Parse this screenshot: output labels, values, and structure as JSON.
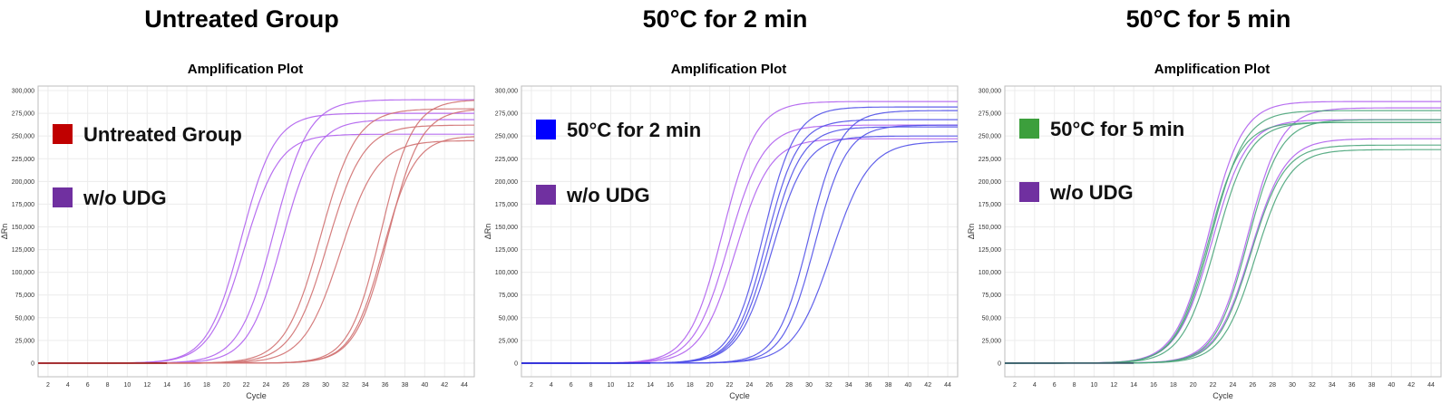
{
  "chart_data": [
    {
      "type": "line",
      "panel_title": "Untreated Group",
      "title": "Amplification Plot",
      "xlabel": "Cycle",
      "ylabel": "ΔRn",
      "xlim": [
        1,
        45
      ],
      "ylim": [
        -15000,
        305000
      ],
      "x_ticks": [
        2,
        4,
        6,
        8,
        10,
        12,
        14,
        16,
        18,
        20,
        22,
        24,
        26,
        28,
        30,
        32,
        34,
        36,
        38,
        40,
        42,
        44
      ],
      "y_ticks": [
        0,
        25000,
        50000,
        75000,
        100000,
        125000,
        150000,
        175000,
        200000,
        225000,
        250000,
        275000,
        300000
      ],
      "y_tick_labels": [
        "0",
        "25,000",
        "50,000",
        "75,000",
        "100,000",
        "125,000",
        "150,000",
        "175,000",
        "200,000",
        "225,000",
        "250,000",
        "275,000",
        "300,000"
      ],
      "grid": true,
      "legend": [
        {
          "label": "Untreated Group",
          "color": "#c00000"
        },
        {
          "label": "w/o UDG",
          "color": "#7030a0"
        }
      ],
      "series": [
        {
          "group": "w/o UDG",
          "color": "#b060ee",
          "midpoint": 21.5,
          "slope": 1.7,
          "plateau": 275000
        },
        {
          "group": "w/o UDG",
          "color": "#b060ee",
          "midpoint": 21.8,
          "slope": 1.75,
          "plateau": 252000
        },
        {
          "group": "w/o UDG",
          "color": "#b060ee",
          "midpoint": 24.8,
          "slope": 1.75,
          "plateau": 290000
        },
        {
          "group": "w/o UDG",
          "color": "#b060ee",
          "midpoint": 25.6,
          "slope": 1.7,
          "plateau": 268000
        },
        {
          "group": "Untreated Group",
          "color": "#d07070",
          "midpoint": 29.5,
          "slope": 1.8,
          "plateau": 280000
        },
        {
          "group": "Untreated Group",
          "color": "#d07070",
          "midpoint": 30.2,
          "slope": 1.8,
          "plateau": 262000
        },
        {
          "group": "Untreated Group",
          "color": "#d07070",
          "midpoint": 31.5,
          "slope": 1.85,
          "plateau": 245000
        },
        {
          "group": "Untreated Group",
          "color": "#d07070",
          "midpoint": 35.6,
          "slope": 1.6,
          "plateau": 290000
        },
        {
          "group": "Untreated Group",
          "color": "#d07070",
          "midpoint": 35.8,
          "slope": 1.6,
          "plateau": 250000
        },
        {
          "group": "Untreated Group",
          "color": "#d07070",
          "midpoint": 36.3,
          "slope": 1.65,
          "plateau": 280000
        }
      ]
    },
    {
      "type": "line",
      "panel_title": "50°C for 2 min",
      "title": "Amplification Plot",
      "xlabel": "Cycle",
      "ylabel": "ΔRn",
      "xlim": [
        1,
        45
      ],
      "ylim": [
        -15000,
        305000
      ],
      "x_ticks": [
        2,
        4,
        6,
        8,
        10,
        12,
        14,
        16,
        18,
        20,
        22,
        24,
        26,
        28,
        30,
        32,
        34,
        36,
        38,
        40,
        42,
        44
      ],
      "y_ticks": [
        0,
        25000,
        50000,
        75000,
        100000,
        125000,
        150000,
        175000,
        200000,
        225000,
        250000,
        275000,
        300000
      ],
      "y_tick_labels": [
        "0",
        "25,000",
        "50,000",
        "75,000",
        "100,000",
        "125,000",
        "150,000",
        "175,000",
        "200,000",
        "225,000",
        "250,000",
        "275,000",
        "300,000"
      ],
      "grid": true,
      "legend": [
        {
          "label": "50°C for 2 min",
          "color": "#0000ff"
        },
        {
          "label": "w/o UDG",
          "color": "#7030a0"
        }
      ],
      "series": [
        {
          "group": "w/o UDG",
          "color": "#b060ee",
          "midpoint": 21.3,
          "slope": 1.7,
          "plateau": 288000
        },
        {
          "group": "w/o UDG",
          "color": "#b060ee",
          "midpoint": 21.9,
          "slope": 1.75,
          "plateau": 262000
        },
        {
          "group": "w/o UDG",
          "color": "#b060ee",
          "midpoint": 22.6,
          "slope": 1.75,
          "plateau": 247000
        },
        {
          "group": "50°C for 2 min",
          "color": "#5050e8",
          "midpoint": 25.4,
          "slope": 1.6,
          "plateau": 282000
        },
        {
          "group": "50°C for 2 min",
          "color": "#5050e8",
          "midpoint": 25.7,
          "slope": 1.6,
          "plateau": 268000
        },
        {
          "group": "50°C for 2 min",
          "color": "#5050e8",
          "midpoint": 26.0,
          "slope": 1.65,
          "plateau": 260000
        },
        {
          "group": "50°C for 2 min",
          "color": "#5050e8",
          "midpoint": 26.3,
          "slope": 1.7,
          "plateau": 250000
        },
        {
          "group": "50°C for 2 min",
          "color": "#5050e8",
          "midpoint": 30.0,
          "slope": 1.6,
          "plateau": 278000
        },
        {
          "group": "50°C for 2 min",
          "color": "#5050e8",
          "midpoint": 30.6,
          "slope": 1.6,
          "plateau": 262000
        },
        {
          "group": "50°C for 2 min",
          "color": "#5050e8",
          "midpoint": 32.3,
          "slope": 1.9,
          "plateau": 244000
        }
      ]
    },
    {
      "type": "line",
      "panel_title": "50°C for 5 min",
      "title": "Amplification Plot",
      "xlabel": "Cycle",
      "ylabel": "ΔRn",
      "xlim": [
        1,
        45
      ],
      "ylim": [
        -15000,
        305000
      ],
      "x_ticks": [
        2,
        4,
        6,
        8,
        10,
        12,
        14,
        16,
        18,
        20,
        22,
        24,
        26,
        28,
        30,
        32,
        34,
        36,
        38,
        40,
        42,
        44
      ],
      "y_ticks": [
        0,
        25000,
        50000,
        75000,
        100000,
        125000,
        150000,
        175000,
        200000,
        225000,
        250000,
        275000,
        300000
      ],
      "y_tick_labels": [
        "0",
        "25,000",
        "50,000",
        "75,000",
        "100,000",
        "125,000",
        "150,000",
        "175,000",
        "200,000",
        "225,000",
        "250,000",
        "275,000",
        "300,000"
      ],
      "grid": true,
      "legend": [
        {
          "label": "50°C for 5 min",
          "color": "#3c9f3c"
        },
        {
          "label": "w/o UDG",
          "color": "#7030a0"
        }
      ],
      "series": [
        {
          "group": "w/o UDG",
          "color": "#b060ee",
          "midpoint": 21.6,
          "slope": 1.7,
          "plateau": 288000
        },
        {
          "group": "w/o UDG",
          "color": "#b060ee",
          "midpoint": 21.9,
          "slope": 1.75,
          "plateau": 268000
        },
        {
          "group": "w/o UDG",
          "color": "#b060ee",
          "midpoint": 25.5,
          "slope": 1.7,
          "plateau": 281000
        },
        {
          "group": "w/o UDG",
          "color": "#b060ee",
          "midpoint": 25.8,
          "slope": 1.75,
          "plateau": 247000
        },
        {
          "group": "50°C for 5 min",
          "color": "#4aa57a",
          "midpoint": 21.5,
          "slope": 1.65,
          "plateau": 265000
        },
        {
          "group": "50°C for 5 min",
          "color": "#4aa57a",
          "midpoint": 21.8,
          "slope": 1.7,
          "plateau": 278000
        },
        {
          "group": "50°C for 5 min",
          "color": "#4aa57a",
          "midpoint": 22.3,
          "slope": 1.7,
          "plateau": 265000
        },
        {
          "group": "50°C for 5 min",
          "color": "#4aa57a",
          "midpoint": 25.5,
          "slope": 1.65,
          "plateau": 268000
        },
        {
          "group": "50°C for 5 min",
          "color": "#4aa57a",
          "midpoint": 25.8,
          "slope": 1.7,
          "plateau": 240000
        },
        {
          "group": "50°C for 5 min",
          "color": "#4aa57a",
          "midpoint": 26.3,
          "slope": 1.7,
          "plateau": 235000
        }
      ]
    }
  ]
}
